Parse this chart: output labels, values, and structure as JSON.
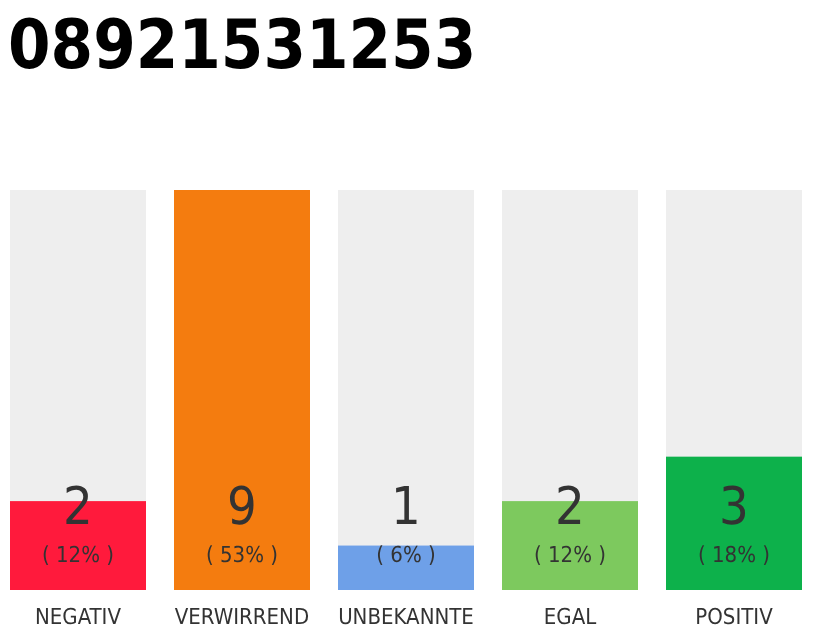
{
  "chart_data": {
    "type": "bar",
    "title": "08921531253",
    "categories": [
      "NEGATIV",
      "VERWIRREND",
      "UNBEKANNTE",
      "EGAL",
      "POSITIV"
    ],
    "values": [
      2,
      9,
      1,
      2,
      3
    ],
    "colors": [
      "#ff1a3c",
      "#f47c0f",
      "#6ea0e8",
      "#7dc95e",
      "#0db14b"
    ],
    "value_labels": [
      "2\n( 12% )",
      "9\n( 53% )",
      "1\n( 6% )",
      "2\n( 12% )",
      "3\n( 18% )"
    ],
    "ylim": [
      0,
      9
    ],
    "tick_labels": "x"
  }
}
